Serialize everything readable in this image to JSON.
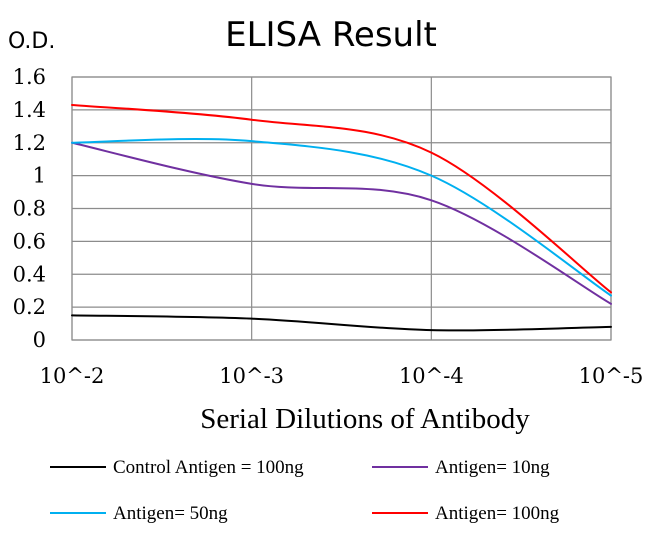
{
  "chart_data": {
    "type": "line",
    "title": "ELISA Result",
    "ylabel": "O.D.",
    "xlabel": "Serial Dilutions of Antibody",
    "categories": [
      "10^-2",
      "10^-3",
      "10^-4",
      "10^-5"
    ],
    "ylim": [
      0,
      1.6
    ],
    "yticks": [
      0,
      0.2,
      0.4,
      0.6,
      0.8,
      1,
      1.2,
      1.4,
      1.6
    ],
    "ytick_labels": [
      "0",
      "0.2",
      "0.4",
      "0.6",
      "0.8",
      "1",
      "1.2",
      "1.4",
      "1.6"
    ],
    "grid": true,
    "legend_position": "bottom",
    "series": [
      {
        "name": "Control Antigen = 100ng",
        "color": "#000000",
        "values": [
          0.15,
          0.13,
          0.06,
          0.08
        ]
      },
      {
        "name": "Antigen= 10ng",
        "color": "#7030a0",
        "values": [
          1.2,
          0.95,
          0.85,
          0.22
        ]
      },
      {
        "name": "Antigen= 50ng",
        "color": "#00b0f0",
        "values": [
          1.2,
          1.21,
          1.0,
          0.27
        ]
      },
      {
        "name": "Antigen= 100ng",
        "color": "#ff0000",
        "values": [
          1.43,
          1.34,
          1.14,
          0.29
        ]
      }
    ]
  }
}
